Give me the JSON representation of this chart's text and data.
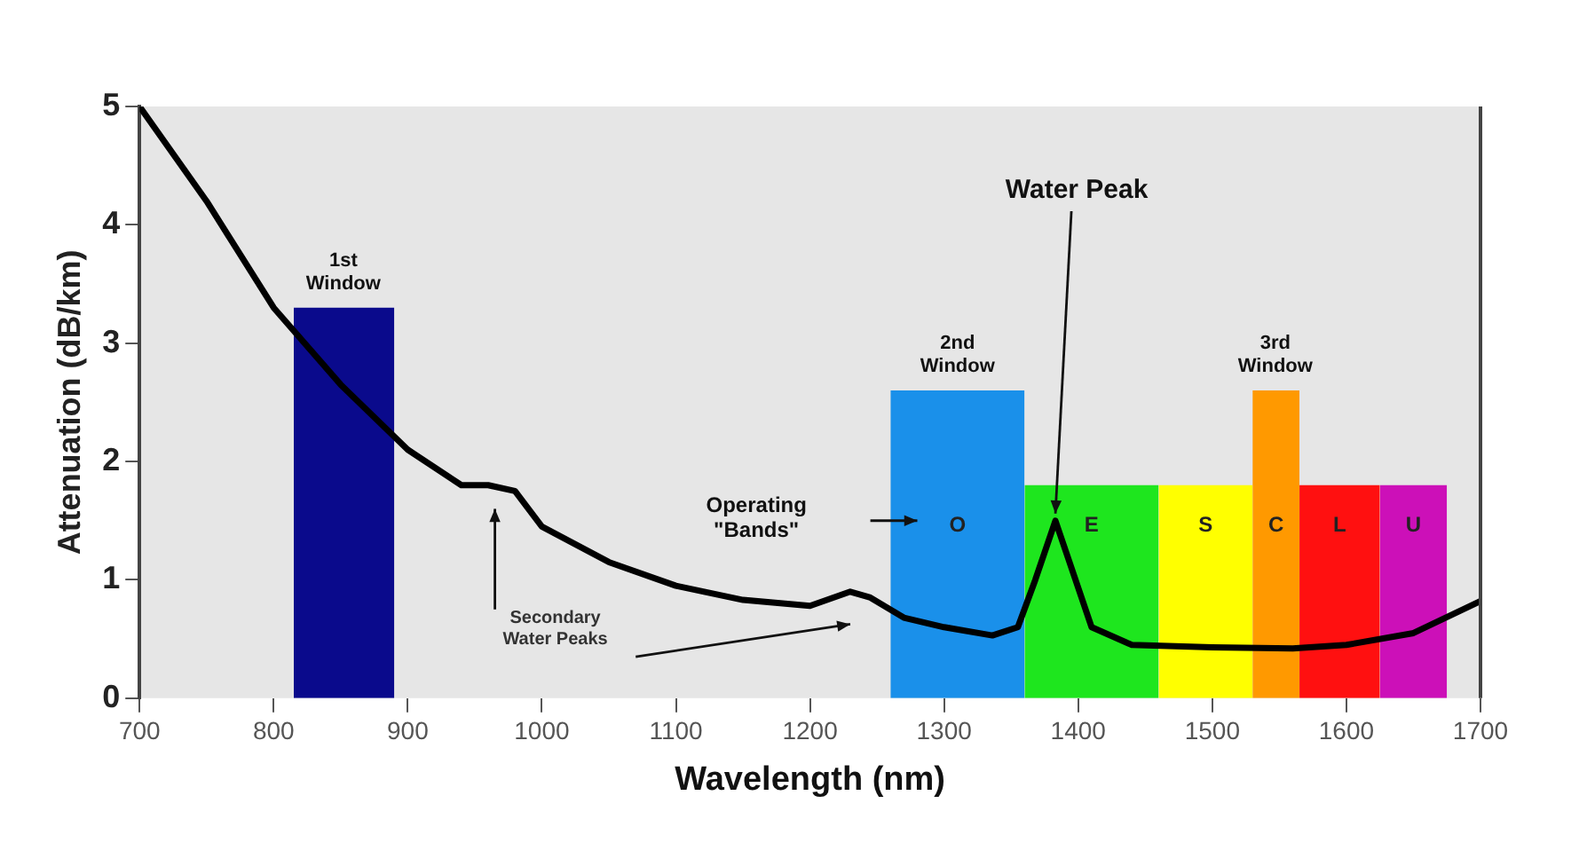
{
  "chart_data": {
    "type": "line",
    "xlabel": "Wavelength (nm)",
    "ylabel": "Attenuation (dB/km)",
    "xlim": [
      700,
      1700
    ],
    "xticks": [
      700,
      800,
      900,
      1000,
      1100,
      1200,
      1300,
      1400,
      1500,
      1600,
      1700
    ],
    "ylim": [
      0,
      5
    ],
    "yticks": [
      0,
      1,
      2,
      3,
      4,
      5
    ],
    "grid": false,
    "legend": false,
    "marker": "none",
    "line_style": "solid",
    "series": [
      {
        "type": "line",
        "color": "#000000",
        "x": [
          700,
          750,
          800,
          850,
          900,
          940,
          960,
          980,
          990,
          1000,
          1050,
          1100,
          1150,
          1200,
          1230,
          1245,
          1270,
          1300,
          1336,
          1355,
          1368,
          1383,
          1395,
          1410,
          1440,
          1500,
          1560,
          1600,
          1650,
          1700
        ],
        "values": [
          5,
          4.2,
          3.3,
          2.65,
          2.1,
          1.8,
          1.8,
          1.75,
          1.6,
          1.45,
          1.15,
          0.95,
          0.83,
          0.78,
          0.9,
          0.85,
          0.68,
          0.6,
          0.53,
          0.6,
          1.0,
          1.5,
          1.1,
          0.6,
          0.45,
          0.43,
          0.42,
          0.45,
          0.55,
          0.82
        ]
      },
      {
        "type": "area",
        "color": "#0a0a8c",
        "x": [
          815,
          890
        ],
        "values": [
          3.3,
          3.3
        ]
      },
      {
        "type": "area",
        "name": "O",
        "color": "#1a90ea",
        "x": [
          1260,
          1360
        ],
        "values": [
          2.6,
          2.6
        ]
      },
      {
        "type": "area",
        "name": "E",
        "color": "#1ee61e",
        "x": [
          1360,
          1460
        ],
        "values": [
          1.8,
          1.8
        ]
      },
      {
        "type": "area",
        "name": "S",
        "color": "#ffff00",
        "x": [
          1460,
          1530
        ],
        "values": [
          1.8,
          1.8
        ]
      },
      {
        "type": "area",
        "name": "C",
        "color": "#ff9900",
        "x": [
          1530,
          1565
        ],
        "values": [
          2.6,
          2.6
        ]
      },
      {
        "type": "area",
        "name": "L",
        "color": "#ff1010",
        "x": [
          1565,
          1625
        ],
        "values": [
          1.8,
          1.8
        ]
      },
      {
        "type": "area",
        "name": "U",
        "color": "#cc10b8",
        "x": [
          1625,
          1675
        ],
        "values": [
          1.8,
          1.8
        ]
      }
    ],
    "annotations": [
      {
        "text": "1st\nWindow",
        "x": 852,
        "y": 3.3
      },
      {
        "text": "2nd\nWindow",
        "x": 1310,
        "y": 2.6
      },
      {
        "text": "3rd\nWindow",
        "x": 1547,
        "y": 2.6
      },
      {
        "text": "Water Peak",
        "x": 1383,
        "y": 1.5
      },
      "Operating\n\"Bands\"",
      "Secondary\nWater Peaks"
    ]
  }
}
